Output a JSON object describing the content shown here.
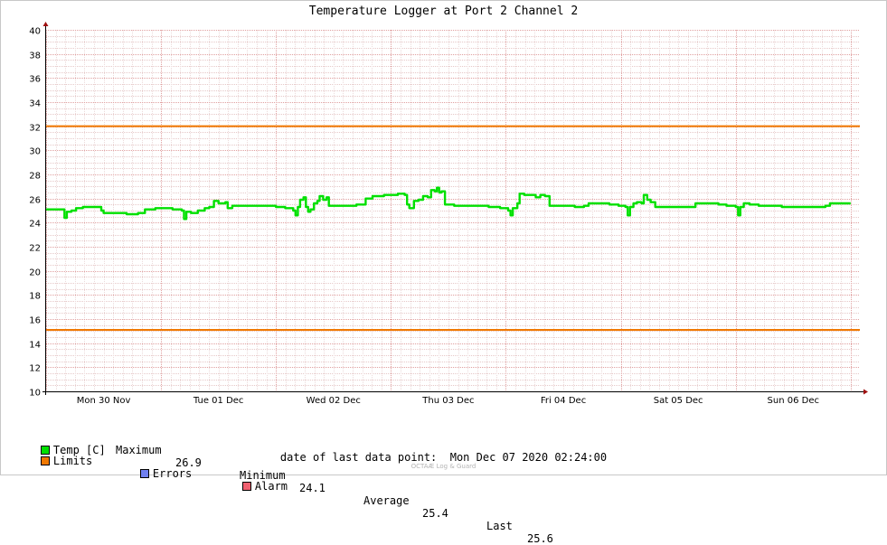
{
  "chart_data": {
    "type": "line",
    "title": "Temperature Logger at Port 2 Channel 2",
    "ylim": [
      10,
      40
    ],
    "y_ticks": [
      "10",
      "12",
      "14",
      "16",
      "18",
      "20",
      "22",
      "24",
      "26",
      "28",
      "30",
      "32",
      "34",
      "36",
      "38",
      "40"
    ],
    "x_ticks": [
      "Mon 30 Nov",
      "Tue 01 Dec",
      "Wed 02 Dec",
      "Thu 03 Dec",
      "Fri 04 Dec",
      "Sat 05 Dec",
      "Sun 06 Dec"
    ],
    "x_unit": "days since start of plotted period (Mon 30 Nov 00:00 at day 0.5)",
    "xlim": [
      0,
      7.08
    ],
    "grid": true,
    "limits": [
      32,
      15.1
    ],
    "series": [
      {
        "name": "Temp [C]",
        "color": "#00e000",
        "points": [
          [
            0.0,
            25.1
          ],
          [
            0.14,
            25.1
          ],
          [
            0.16,
            24.4
          ],
          [
            0.18,
            24.9
          ],
          [
            0.22,
            25.0
          ],
          [
            0.26,
            25.2
          ],
          [
            0.32,
            25.3
          ],
          [
            0.45,
            25.3
          ],
          [
            0.48,
            25.0
          ],
          [
            0.5,
            24.8
          ],
          [
            0.6,
            24.8
          ],
          [
            0.7,
            24.7
          ],
          [
            0.8,
            24.8
          ],
          [
            0.86,
            25.1
          ],
          [
            0.95,
            25.2
          ],
          [
            1.1,
            25.1
          ],
          [
            1.18,
            25.0
          ],
          [
            1.2,
            24.3
          ],
          [
            1.22,
            24.9
          ],
          [
            1.26,
            24.8
          ],
          [
            1.32,
            25.0
          ],
          [
            1.38,
            25.2
          ],
          [
            1.42,
            25.3
          ],
          [
            1.46,
            25.8
          ],
          [
            1.5,
            25.6
          ],
          [
            1.56,
            25.7
          ],
          [
            1.58,
            25.2
          ],
          [
            1.62,
            25.4
          ],
          [
            1.7,
            25.4
          ],
          [
            1.8,
            25.4
          ],
          [
            1.9,
            25.4
          ],
          [
            2.0,
            25.3
          ],
          [
            2.08,
            25.2
          ],
          [
            2.15,
            25.0
          ],
          [
            2.17,
            24.6
          ],
          [
            2.19,
            25.3
          ],
          [
            2.21,
            25.9
          ],
          [
            2.24,
            26.1
          ],
          [
            2.26,
            25.3
          ],
          [
            2.28,
            24.9
          ],
          [
            2.3,
            25.1
          ],
          [
            2.33,
            25.6
          ],
          [
            2.36,
            25.8
          ],
          [
            2.38,
            26.2
          ],
          [
            2.41,
            25.9
          ],
          [
            2.44,
            26.1
          ],
          [
            2.46,
            25.4
          ],
          [
            2.55,
            25.4
          ],
          [
            2.62,
            25.4
          ],
          [
            2.7,
            25.5
          ],
          [
            2.76,
            25.5
          ],
          [
            2.78,
            26.0
          ],
          [
            2.84,
            26.2
          ],
          [
            2.94,
            26.3
          ],
          [
            3.06,
            26.4
          ],
          [
            3.12,
            26.3
          ],
          [
            3.14,
            25.5
          ],
          [
            3.16,
            25.2
          ],
          [
            3.2,
            25.8
          ],
          [
            3.24,
            25.9
          ],
          [
            3.28,
            26.2
          ],
          [
            3.32,
            26.1
          ],
          [
            3.35,
            26.7
          ],
          [
            3.38,
            26.6
          ],
          [
            3.4,
            26.9
          ],
          [
            3.42,
            26.5
          ],
          [
            3.44,
            26.6
          ],
          [
            3.47,
            25.5
          ],
          [
            3.55,
            25.4
          ],
          [
            3.65,
            25.4
          ],
          [
            3.75,
            25.4
          ],
          [
            3.85,
            25.3
          ],
          [
            3.95,
            25.2
          ],
          [
            4.02,
            25.0
          ],
          [
            4.04,
            24.6
          ],
          [
            4.06,
            25.2
          ],
          [
            4.1,
            25.6
          ],
          [
            4.12,
            26.4
          ],
          [
            4.16,
            26.3
          ],
          [
            4.22,
            26.3
          ],
          [
            4.26,
            26.1
          ],
          [
            4.3,
            26.3
          ],
          [
            4.34,
            26.2
          ],
          [
            4.38,
            25.4
          ],
          [
            4.5,
            25.4
          ],
          [
            4.6,
            25.3
          ],
          [
            4.68,
            25.4
          ],
          [
            4.72,
            25.6
          ],
          [
            4.8,
            25.6
          ],
          [
            4.9,
            25.5
          ],
          [
            4.98,
            25.4
          ],
          [
            5.04,
            25.3
          ],
          [
            5.06,
            24.6
          ],
          [
            5.08,
            25.3
          ],
          [
            5.11,
            25.6
          ],
          [
            5.14,
            25.7
          ],
          [
            5.18,
            25.6
          ],
          [
            5.2,
            26.3
          ],
          [
            5.23,
            25.9
          ],
          [
            5.26,
            25.7
          ],
          [
            5.3,
            25.3
          ],
          [
            5.4,
            25.3
          ],
          [
            5.5,
            25.3
          ],
          [
            5.6,
            25.3
          ],
          [
            5.65,
            25.6
          ],
          [
            5.75,
            25.6
          ],
          [
            5.85,
            25.5
          ],
          [
            5.92,
            25.4
          ],
          [
            6.0,
            25.3
          ],
          [
            6.02,
            24.6
          ],
          [
            6.04,
            25.3
          ],
          [
            6.07,
            25.6
          ],
          [
            6.12,
            25.5
          ],
          [
            6.2,
            25.4
          ],
          [
            6.3,
            25.4
          ],
          [
            6.4,
            25.3
          ],
          [
            6.5,
            25.3
          ],
          [
            6.6,
            25.3
          ],
          [
            6.72,
            25.3
          ],
          [
            6.78,
            25.4
          ],
          [
            6.82,
            25.6
          ],
          [
            6.92,
            25.6
          ],
          [
            7.0,
            25.6
          ]
        ]
      },
      {
        "name": "Limits",
        "color": "#f07800"
      }
    ]
  },
  "legend": {
    "temp_label": "Temp [C]",
    "limits_label": "Limits",
    "errors_label": "Errors",
    "alarm_label": "Alarm",
    "max_label": "Maximum",
    "max_value": "26.9",
    "min_label": "Minimum",
    "min_value": "24.1",
    "avg_label": "Average",
    "avg_value": "25.4",
    "last_label": "Last",
    "last_value": "25.6",
    "temp_color": "#00e000",
    "limits_color": "#f07800",
    "errors_color": "#7080f0",
    "alarm_color": "#f06070"
  },
  "footer": {
    "label": "date of last data point:",
    "value": "Mon Dec 07 2020 02:24:00"
  },
  "watermark": "OCTAÆ Log & Guard"
}
